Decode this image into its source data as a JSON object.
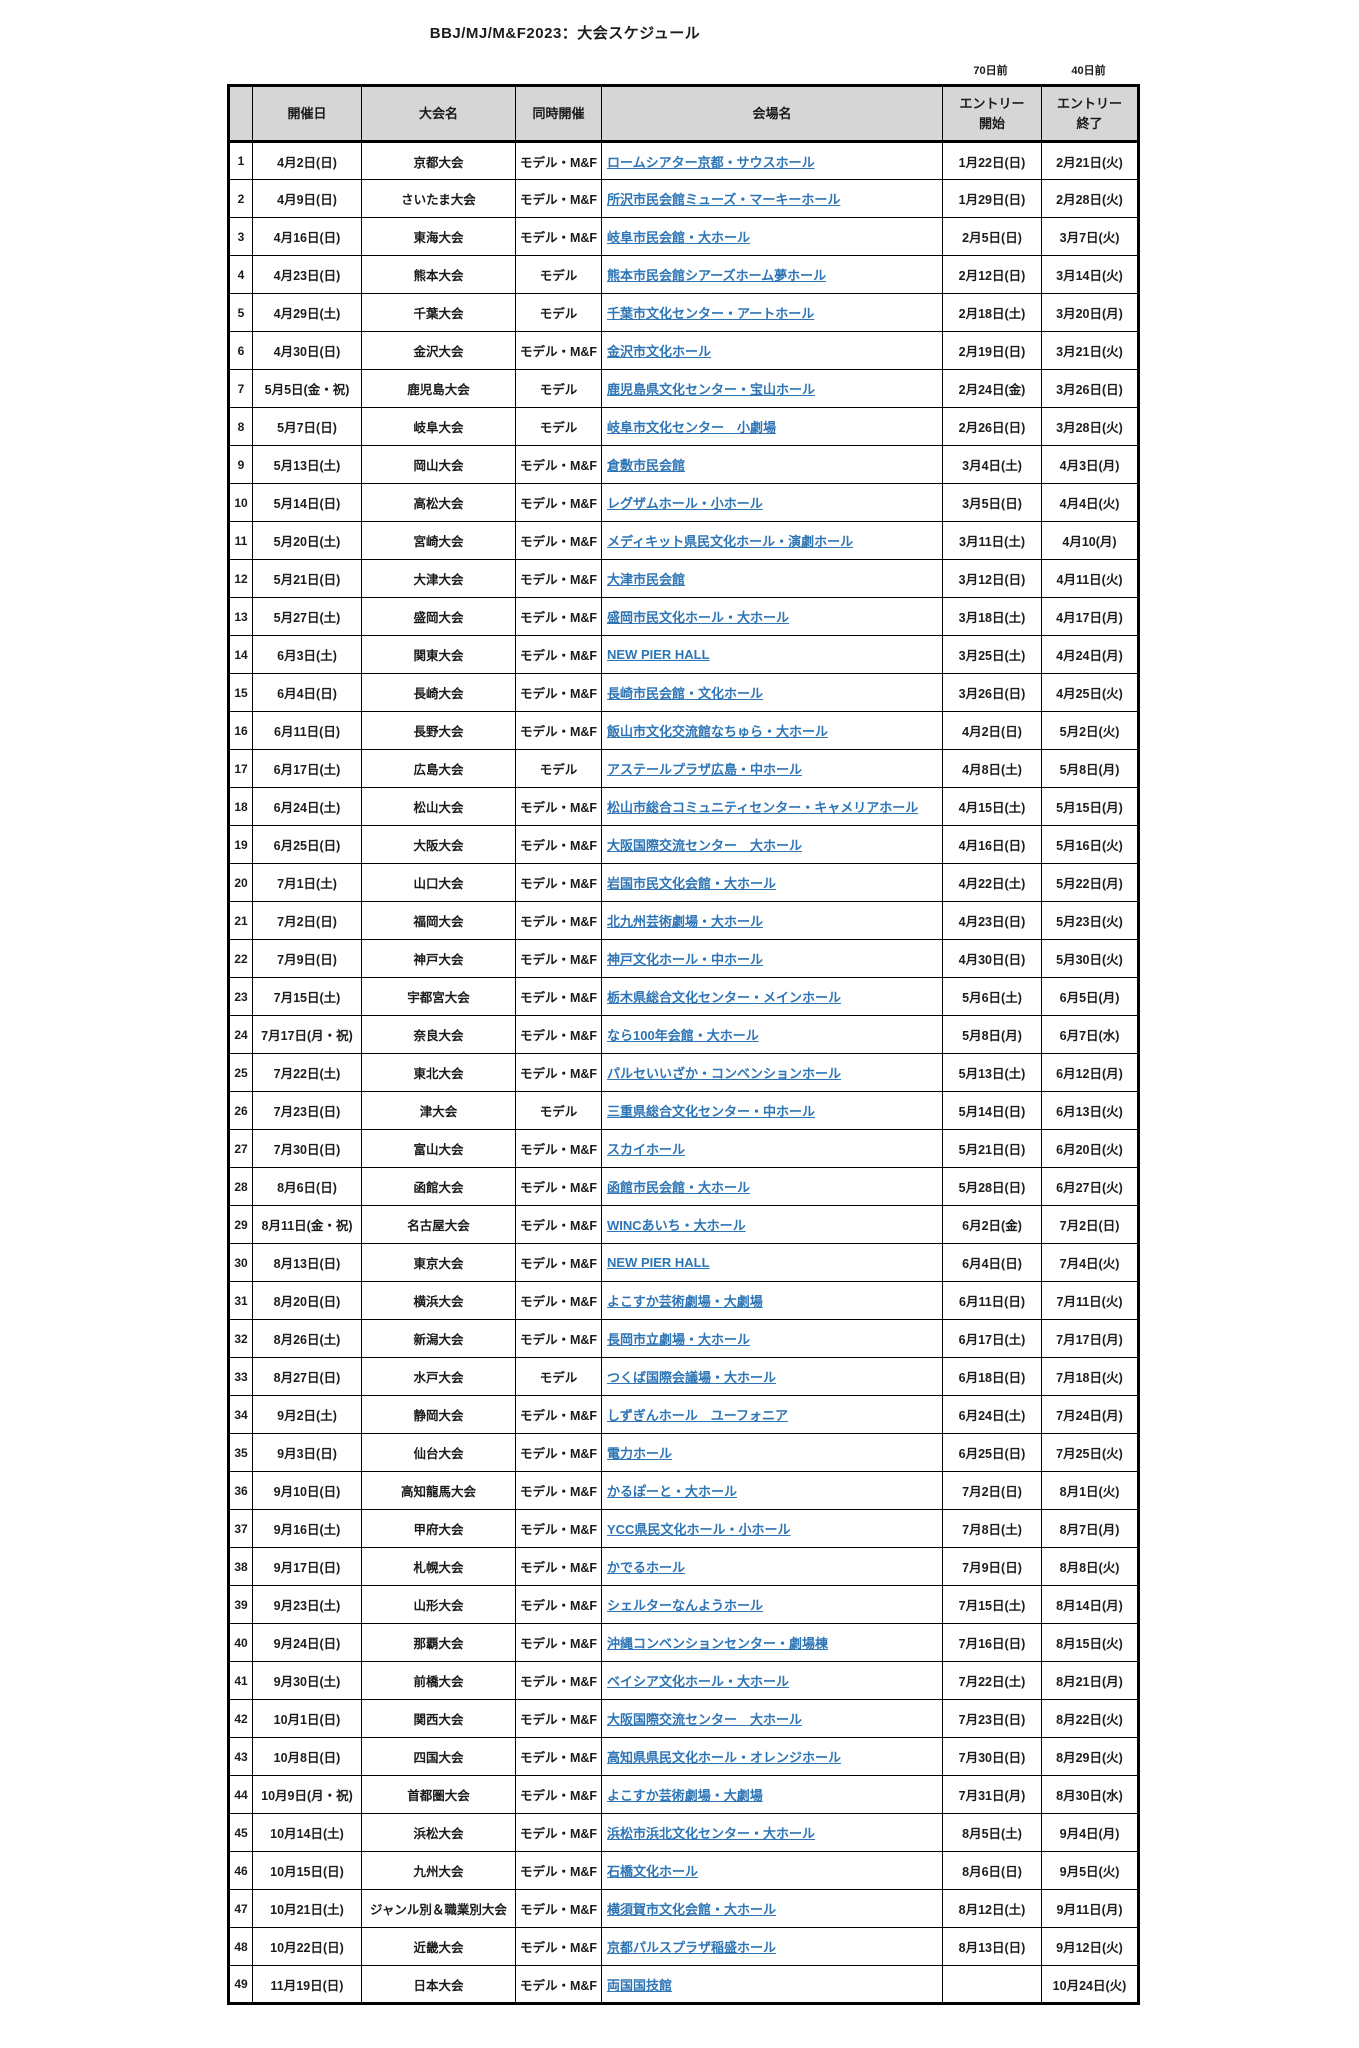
{
  "title": "BBJ/MJ/M&F2023：大会スケジュール",
  "notes": {
    "start_note": "70日前",
    "end_note": "40日前"
  },
  "colors": {
    "link": "#2e75b6",
    "header_bg": "#d6d6d6",
    "border": "#000000"
  },
  "table": {
    "headers": {
      "no": "",
      "date": "開催日",
      "name": "大会名",
      "concurrent": "同時開催",
      "venue": "会場名",
      "entry_start": "エントリー\n開始",
      "entry_end": "エントリー\n終了"
    },
    "rows": [
      {
        "no": "1",
        "date": "4月2日(日)",
        "name": "京都大会",
        "concurrent": "モデル・M&F",
        "venue": "ロームシアター京都・サウスホール",
        "entry_start": "1月22日(日)",
        "entry_end": "2月21日(火)"
      },
      {
        "no": "2",
        "date": "4月9日(日)",
        "name": "さいたま大会",
        "concurrent": "モデル・M&F",
        "venue": "所沢市民会館ミューズ・マーキーホール",
        "entry_start": "1月29日(日)",
        "entry_end": "2月28日(火)"
      },
      {
        "no": "3",
        "date": "4月16日(日)",
        "name": "東海大会",
        "concurrent": "モデル・M&F",
        "venue": "岐阜市民会館・大ホール",
        "entry_start": "2月5日(日)",
        "entry_end": "3月7日(火)"
      },
      {
        "no": "4",
        "date": "4月23日(日)",
        "name": "熊本大会",
        "concurrent": "モデル",
        "venue": "熊本市民会館シアーズホーム夢ホール",
        "entry_start": "2月12日(日)",
        "entry_end": "3月14日(火)"
      },
      {
        "no": "5",
        "date": "4月29日(土)",
        "name": "千葉大会",
        "concurrent": "モデル",
        "venue": "千葉市文化センター・アートホール",
        "entry_start": "2月18日(土)",
        "entry_end": "3月20日(月)"
      },
      {
        "no": "6",
        "date": "4月30日(日)",
        "name": "金沢大会",
        "concurrent": "モデル・M&F",
        "venue": "金沢市文化ホール",
        "entry_start": "2月19日(日)",
        "entry_end": "3月21日(火)"
      },
      {
        "no": "7",
        "date": "5月5日(金・祝)",
        "name": "鹿児島大会",
        "concurrent": "モデル",
        "venue": "鹿児島県文化センター・宝山ホール",
        "entry_start": "2月24日(金)",
        "entry_end": "3月26日(日)"
      },
      {
        "no": "8",
        "date": "5月7日(日)",
        "name": "岐阜大会",
        "concurrent": "モデル",
        "venue": "岐阜市文化センター　小劇場",
        "entry_start": "2月26日(日)",
        "entry_end": "3月28日(火)"
      },
      {
        "no": "9",
        "date": "5月13日(土)",
        "name": "岡山大会",
        "concurrent": "モデル・M&F",
        "venue": "倉敷市民会館",
        "entry_start": "3月4日(土)",
        "entry_end": "4月3日(月)"
      },
      {
        "no": "10",
        "date": "5月14日(日)",
        "name": "高松大会",
        "concurrent": "モデル・M&F",
        "venue": "レグザムホール・小ホール",
        "entry_start": "3月5日(日)",
        "entry_end": "4月4日(火)"
      },
      {
        "no": "11",
        "date": "5月20日(土)",
        "name": "宮崎大会",
        "concurrent": "モデル・M&F",
        "venue": "メディキット県民文化ホール・演劇ホール",
        "entry_start": "3月11日(土)",
        "entry_end": "4月10(月)"
      },
      {
        "no": "12",
        "date": "5月21日(日)",
        "name": "大津大会",
        "concurrent": "モデル・M&F",
        "venue": "大津市民会館",
        "entry_start": "3月12日(日)",
        "entry_end": "4月11日(火)"
      },
      {
        "no": "13",
        "date": "5月27日(土)",
        "name": "盛岡大会",
        "concurrent": "モデル・M&F",
        "venue": "盛岡市民文化ホール・大ホール",
        "entry_start": "3月18日(土)",
        "entry_end": "4月17日(月)"
      },
      {
        "no": "14",
        "date": "6月3日(土)",
        "name": "関東大会",
        "concurrent": "モデル・M&F",
        "venue": "NEW PIER HALL",
        "entry_start": "3月25日(土)",
        "entry_end": "4月24日(月)"
      },
      {
        "no": "15",
        "date": "6月4日(日)",
        "name": "長崎大会",
        "concurrent": "モデル・M&F",
        "venue": "長崎市民会館・文化ホール",
        "entry_start": "3月26日(日)",
        "entry_end": "4月25日(火)"
      },
      {
        "no": "16",
        "date": "6月11日(日)",
        "name": "長野大会",
        "concurrent": "モデル・M&F",
        "venue": "飯山市文化交流館なちゅら・大ホール",
        "entry_start": "4月2日(日)",
        "entry_end": "5月2日(火)"
      },
      {
        "no": "17",
        "date": "6月17日(土)",
        "name": "広島大会",
        "concurrent": "モデル",
        "venue": "アステールプラザ広島・中ホール",
        "entry_start": "4月8日(土)",
        "entry_end": "5月8日(月)"
      },
      {
        "no": "18",
        "date": "6月24日(土)",
        "name": "松山大会",
        "concurrent": "モデル・M&F",
        "venue": "松山市総合コミュニティセンター・キャメリアホール",
        "entry_start": "4月15日(土)",
        "entry_end": "5月15日(月)"
      },
      {
        "no": "19",
        "date": "6月25日(日)",
        "name": "大阪大会",
        "concurrent": "モデル・M&F",
        "venue": "大阪国際交流センター　大ホール",
        "entry_start": "4月16日(日)",
        "entry_end": "5月16日(火)"
      },
      {
        "no": "20",
        "date": "7月1日(土)",
        "name": "山口大会",
        "concurrent": "モデル・M&F",
        "venue": "岩国市民文化会館・大ホール",
        "entry_start": "4月22日(土)",
        "entry_end": "5月22日(月)"
      },
      {
        "no": "21",
        "date": "7月2日(日)",
        "name": "福岡大会",
        "concurrent": "モデル・M&F",
        "venue": "北九州芸術劇場・大ホール",
        "entry_start": "4月23日(日)",
        "entry_end": "5月23日(火)"
      },
      {
        "no": "22",
        "date": "7月9日(日)",
        "name": "神戸大会",
        "concurrent": "モデル・M&F",
        "venue": "神戸文化ホール・中ホール",
        "entry_start": "4月30日(日)",
        "entry_end": "5月30日(火)"
      },
      {
        "no": "23",
        "date": "7月15日(土)",
        "name": "宇都宮大会",
        "concurrent": "モデル・M&F",
        "venue": "栃木県総合文化センター・メインホール",
        "entry_start": "5月6日(土)",
        "entry_end": "6月5日(月)"
      },
      {
        "no": "24",
        "date": "7月17日(月・祝)",
        "name": "奈良大会",
        "concurrent": "モデル・M&F",
        "venue": "なら100年会館・大ホール",
        "entry_start": "5月8日(月)",
        "entry_end": "6月7日(水)"
      },
      {
        "no": "25",
        "date": "7月22日(土)",
        "name": "東北大会",
        "concurrent": "モデル・M&F",
        "venue": "パルセいいざか・コンベンションホール",
        "entry_start": "5月13日(土)",
        "entry_end": "6月12日(月)"
      },
      {
        "no": "26",
        "date": "7月23日(日)",
        "name": "津大会",
        "concurrent": "モデル",
        "venue": "三重県総合文化センター・中ホール",
        "entry_start": "5月14日(日)",
        "entry_end": "6月13日(火)"
      },
      {
        "no": "27",
        "date": "7月30日(日)",
        "name": "富山大会",
        "concurrent": "モデル・M&F",
        "venue": "スカイホール",
        "entry_start": "5月21日(日)",
        "entry_end": "6月20日(火)"
      },
      {
        "no": "28",
        "date": "8月6日(日)",
        "name": "函館大会",
        "concurrent": "モデル・M&F",
        "venue": "函館市民会館・大ホール",
        "entry_start": "5月28日(日)",
        "entry_end": "6月27日(火)"
      },
      {
        "no": "29",
        "date": "8月11日(金・祝)",
        "name": "名古屋大会",
        "concurrent": "モデル・M&F",
        "venue": "WINCあいち・大ホール",
        "entry_start": "6月2日(金)",
        "entry_end": "7月2日(日)"
      },
      {
        "no": "30",
        "date": "8月13日(日)",
        "name": "東京大会",
        "concurrent": "モデル・M&F",
        "venue": "NEW PIER HALL",
        "entry_start": "6月4日(日)",
        "entry_end": "7月4日(火)"
      },
      {
        "no": "31",
        "date": "8月20日(日)",
        "name": "横浜大会",
        "concurrent": "モデル・M&F",
        "venue": "よこすか芸術劇場・大劇場",
        "entry_start": "6月11日(日)",
        "entry_end": "7月11日(火)"
      },
      {
        "no": "32",
        "date": "8月26日(土)",
        "name": "新潟大会",
        "concurrent": "モデル・M&F",
        "venue": "長岡市立劇場・大ホール",
        "entry_start": "6月17日(土)",
        "entry_end": "7月17日(月)"
      },
      {
        "no": "33",
        "date": "8月27日(日)",
        "name": "水戸大会",
        "concurrent": "モデル",
        "venue": "つくば国際会議場・大ホール",
        "entry_start": "6月18日(日)",
        "entry_end": "7月18日(火)"
      },
      {
        "no": "34",
        "date": "9月2日(土)",
        "name": "静岡大会",
        "concurrent": "モデル・M&F",
        "venue": "しずぎんホール　ユーフォニア",
        "entry_start": "6月24日(土)",
        "entry_end": "7月24日(月)"
      },
      {
        "no": "35",
        "date": "9月3日(日)",
        "name": "仙台大会",
        "concurrent": "モデル・M&F",
        "venue": "電力ホール",
        "entry_start": "6月25日(日)",
        "entry_end": "7月25日(火)"
      },
      {
        "no": "36",
        "date": "9月10日(日)",
        "name": "高知龍馬大会",
        "concurrent": "モデル・M&F",
        "venue": "かるぽーと・大ホール",
        "entry_start": "7月2日(日)",
        "entry_end": "8月1日(火)"
      },
      {
        "no": "37",
        "date": "9月16日(土)",
        "name": "甲府大会",
        "concurrent": "モデル・M&F",
        "venue": "YCC県民文化ホール・小ホール",
        "entry_start": "7月8日(土)",
        "entry_end": "8月7日(月)"
      },
      {
        "no": "38",
        "date": "9月17日(日)",
        "name": "札幌大会",
        "concurrent": "モデル・M&F",
        "venue": "かでるホール",
        "entry_start": "7月9日(日)",
        "entry_end": "8月8日(火)"
      },
      {
        "no": "39",
        "date": "9月23日(土)",
        "name": "山形大会",
        "concurrent": "モデル・M&F",
        "venue": "シェルターなんようホール",
        "entry_start": "7月15日(土)",
        "entry_end": "8月14日(月)"
      },
      {
        "no": "40",
        "date": "9月24日(日)",
        "name": "那覇大会",
        "concurrent": "モデル・M&F",
        "venue": "沖縄コンベンションセンター・劇場棟",
        "entry_start": "7月16日(日)",
        "entry_end": "8月15日(火)"
      },
      {
        "no": "41",
        "date": "9月30日(土)",
        "name": "前橋大会",
        "concurrent": "モデル・M&F",
        "venue": "ベイシア文化ホール・大ホール",
        "entry_start": "7月22日(土)",
        "entry_end": "8月21日(月)"
      },
      {
        "no": "42",
        "date": "10月1日(日)",
        "name": "関西大会",
        "concurrent": "モデル・M&F",
        "venue": "大阪国際交流センター　大ホール",
        "entry_start": "7月23日(日)",
        "entry_end": "8月22日(火)"
      },
      {
        "no": "43",
        "date": "10月8日(日)",
        "name": "四国大会",
        "concurrent": "モデル・M&F",
        "venue": "高知県県民文化ホール・オレンジホール",
        "entry_start": "7月30日(日)",
        "entry_end": "8月29日(火)"
      },
      {
        "no": "44",
        "date": "10月9日(月・祝)",
        "name": "首都圏大会",
        "concurrent": "モデル・M&F",
        "venue": "よこすか芸術劇場・大劇場",
        "entry_start": "7月31日(月)",
        "entry_end": "8月30日(水)"
      },
      {
        "no": "45",
        "date": "10月14日(土)",
        "name": "浜松大会",
        "concurrent": "モデル・M&F",
        "venue": "浜松市浜北文化センター・大ホール",
        "entry_start": "8月5日(土)",
        "entry_end": "9月4日(月)"
      },
      {
        "no": "46",
        "date": "10月15日(日)",
        "name": "九州大会",
        "concurrent": "モデル・M&F",
        "venue": "石橋文化ホール",
        "entry_start": "8月6日(日)",
        "entry_end": "9月5日(火)"
      },
      {
        "no": "47",
        "date": "10月21日(土)",
        "name": "ジャンル別＆職業別大会",
        "concurrent": "モデル・M&F",
        "venue": "横須賀市文化会館・大ホール",
        "entry_start": "8月12日(土)",
        "entry_end": "9月11日(月)"
      },
      {
        "no": "48",
        "date": "10月22日(日)",
        "name": "近畿大会",
        "concurrent": "モデル・M&F",
        "venue": "京都パルスプラザ稲盛ホール",
        "entry_start": "8月13日(日)",
        "entry_end": "9月12日(火)"
      },
      {
        "no": "49",
        "date": "11月19日(日)",
        "name": "日本大会",
        "concurrent": "モデル・M&F",
        "venue": "両国国技館",
        "entry_start": "",
        "entry_end": "10月24日(火)"
      }
    ]
  }
}
